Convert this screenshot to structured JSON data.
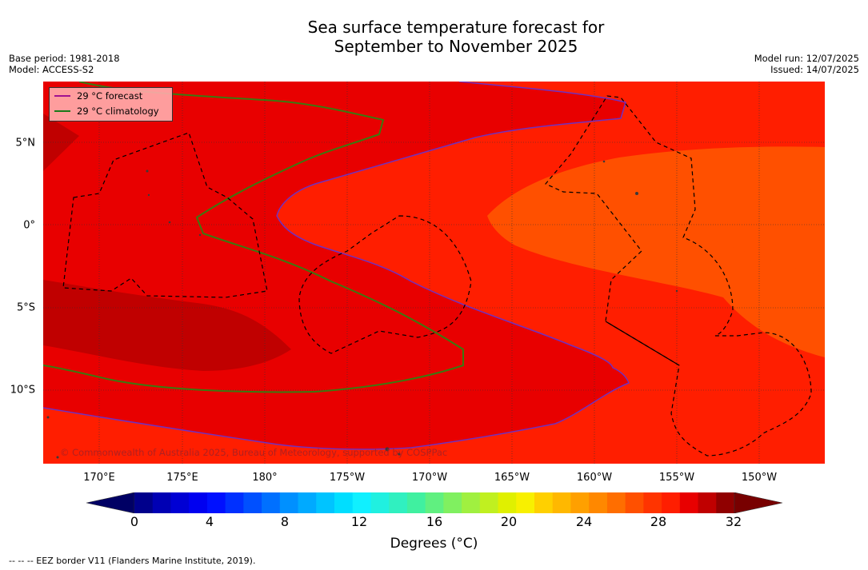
{
  "title_line1": "Sea surface temperature forecast for",
  "title_line2": "September to November 2025",
  "meta_left": {
    "base_period": "Base period: 1981-2018",
    "model": "Model: ACCESS-S2"
  },
  "meta_right": {
    "model_run": "Model run: 12/07/2025",
    "issued": "Issued: 14/07/2025"
  },
  "legend": {
    "forecast_label": "29 °C  forecast",
    "forecast_color": "#a01090",
    "climatology_label": "29 °C  climatology",
    "climatology_color": "#1a7a1a"
  },
  "copyright": "© Commonwealth of Australia 2025, Bureau of Meteorology, supported by COSPPac",
  "lon_labels": [
    "170°E",
    "175°E",
    "180°",
    "175°W",
    "170°W",
    "165°W",
    "160°W",
    "155°W",
    "150°W"
  ],
  "lat_labels": [
    "5°N",
    "0°",
    "5°S",
    "10°S"
  ],
  "colorbar": {
    "ticks": [
      "0",
      "4",
      "8",
      "12",
      "16",
      "20",
      "24",
      "28",
      "32"
    ],
    "label": "Degrees (°C)",
    "colors": [
      "#00008c",
      "#0000b4",
      "#0000d4",
      "#0000f0",
      "#0010ff",
      "#0030ff",
      "#0050ff",
      "#0070ff",
      "#0090ff",
      "#00aaff",
      "#00c4ff",
      "#00deff",
      "#10f0ff",
      "#20f0e0",
      "#30f0c0",
      "#40f0a0",
      "#60f080",
      "#80f060",
      "#a0f040",
      "#c0f020",
      "#e0f000",
      "#f8f000",
      "#ffd000",
      "#ffb800",
      "#ffa000",
      "#ff8800",
      "#ff6e00",
      "#ff5000",
      "#ff3400",
      "#ff1e00",
      "#e80000",
      "#c00000",
      "#900000"
    ],
    "low_color": "#000064",
    "high_color": "#780000"
  },
  "map_colors": {
    "orange": "#ff5000",
    "red_orange": "#ff1e00",
    "red": "#e80000",
    "dark_red": "#c00000"
  },
  "footnote": "--  --  -- EEZ border V11 (Flanders Marine Institute, 2019)."
}
